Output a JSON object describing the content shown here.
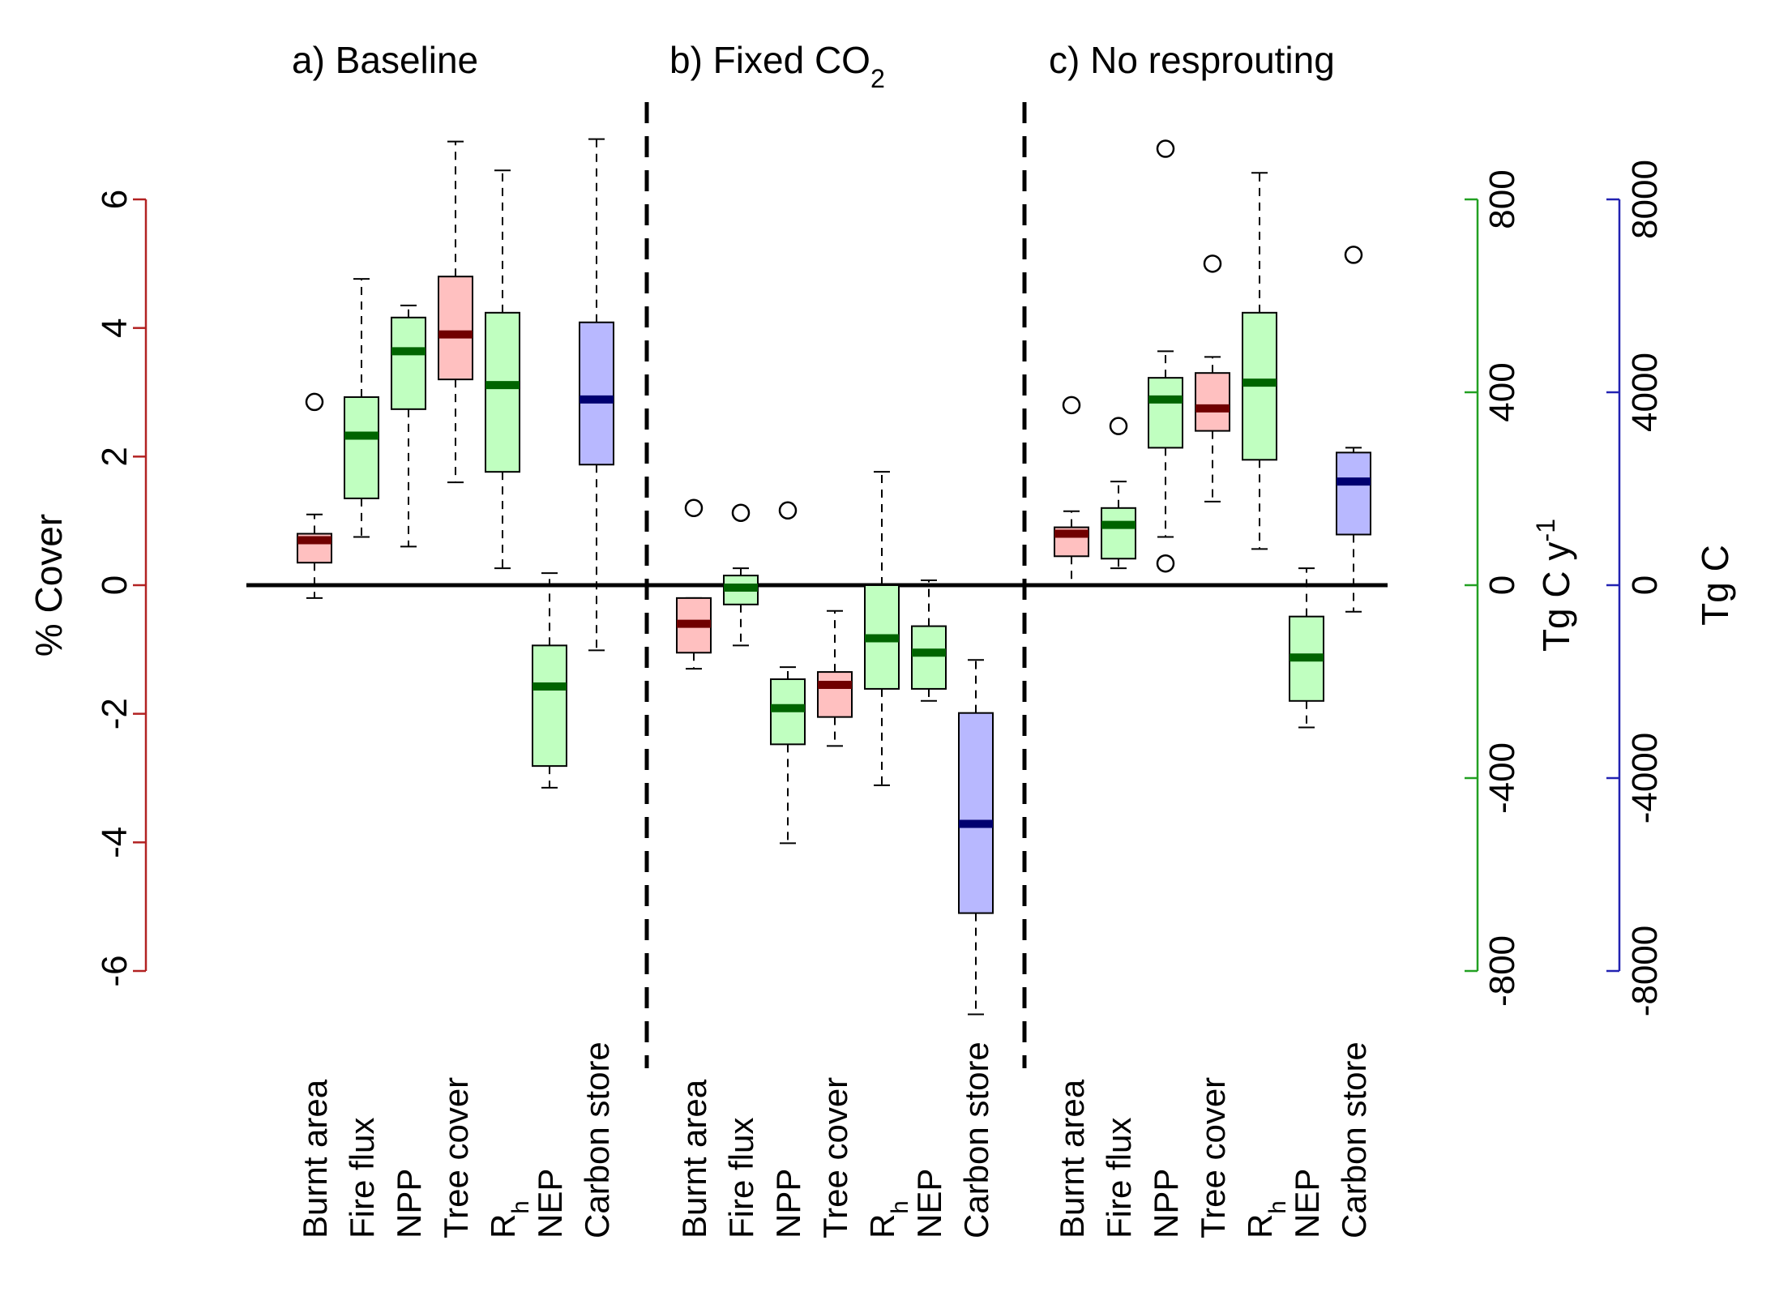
{
  "chart_data": {
    "type": "boxplot",
    "panels": [
      {
        "title_parts": [
          {
            "text": "a) Baseline"
          }
        ],
        "boxes": [
          {
            "label": "Burnt area",
            "group": "cover",
            "low": -0.2,
            "q1": 0.35,
            "median": 0.7,
            "q3": 0.8,
            "high": 1.1,
            "outliers": [
              2.85
            ]
          },
          {
            "label": "Fire flux",
            "group": "flux",
            "low": 100,
            "q1": 180,
            "median": 310,
            "q3": 390,
            "high": 635,
            "outliers": []
          },
          {
            "label": "NPP",
            "group": "flux",
            "low": 80,
            "q1": 365,
            "median": 485,
            "q3": 555,
            "high": 580,
            "outliers": []
          },
          {
            "label": "Tree cover",
            "group": "cover",
            "low": 1.6,
            "q1": 3.2,
            "median": 3.9,
            "q3": 4.8,
            "high": 6.9,
            "outliers": []
          },
          {
            "label": "R",
            "sub": "h",
            "group": "flux",
            "low": 35,
            "q1": 235,
            "median": 415,
            "q3": 565,
            "high": 860,
            "outliers": []
          },
          {
            "label": "NEP",
            "group": "flux",
            "low": -420,
            "q1": -375,
            "median": -210,
            "q3": -125,
            "high": 25,
            "outliers": []
          },
          {
            "label": "Carbon store",
            "group": "store",
            "low": -1350,
            "q1": 2500,
            "median": 3850,
            "q3": 5450,
            "high": 9250,
            "outliers": []
          }
        ]
      },
      {
        "title_parts": [
          {
            "text": "b) Fixed CO"
          },
          {
            "text": "2",
            "sub": true
          }
        ],
        "boxes": [
          {
            "label": "Burnt area",
            "group": "cover",
            "low": -1.3,
            "q1": -1.05,
            "median": -0.6,
            "q3": -0.2,
            "high": -0.2,
            "outliers": [
              1.2
            ]
          },
          {
            "label": "Fire flux",
            "group": "flux",
            "low": -125,
            "q1": -40,
            "median": -5,
            "q3": 20,
            "high": 35,
            "outliers": [
              150
            ]
          },
          {
            "label": "NPP",
            "group": "flux",
            "low": -535,
            "q1": -330,
            "median": -255,
            "q3": -195,
            "high": -170,
            "outliers": [
              155
            ]
          },
          {
            "label": "Tree cover",
            "group": "cover",
            "low": -2.5,
            "q1": -2.05,
            "median": -1.55,
            "q3": -1.35,
            "high": -0.4,
            "outliers": []
          },
          {
            "label": "R",
            "sub": "h",
            "group": "flux",
            "low": -415,
            "q1": -215,
            "median": -110,
            "q3": 0,
            "high": 235,
            "outliers": []
          },
          {
            "label": "NEP",
            "group": "flux",
            "low": -240,
            "q1": -215,
            "median": -140,
            "q3": -85,
            "high": 10,
            "outliers": []
          },
          {
            "label": "Carbon store",
            "group": "store",
            "low": -8900,
            "q1": -6800,
            "median": -4950,
            "q3": -2650,
            "high": -1550,
            "outliers": []
          }
        ]
      },
      {
        "title_parts": [
          {
            "text": "c) No resprouting"
          }
        ],
        "boxes": [
          {
            "label": "Burnt area",
            "group": "cover",
            "low": 0.0,
            "q1": 0.45,
            "median": 0.8,
            "q3": 0.9,
            "high": 1.15,
            "outliers": [
              2.8
            ]
          },
          {
            "label": "Fire flux",
            "group": "flux",
            "low": 35,
            "q1": 55,
            "median": 125,
            "q3": 160,
            "high": 215,
            "outliers": [
              330
            ]
          },
          {
            "label": "NPP",
            "group": "flux",
            "low": 100,
            "q1": 285,
            "median": 385,
            "q3": 430,
            "high": 485,
            "outliers": [
              45,
              905
            ]
          },
          {
            "label": "Tree cover",
            "group": "cover",
            "low": 1.3,
            "q1": 2.4,
            "median": 2.75,
            "q3": 3.3,
            "high": 3.55,
            "outliers": [
              5.0
            ]
          },
          {
            "label": "R",
            "sub": "h",
            "group": "flux",
            "low": 75,
            "q1": 260,
            "median": 420,
            "q3": 565,
            "high": 855,
            "outliers": []
          },
          {
            "label": "NEP",
            "group": "flux",
            "low": -295,
            "q1": -240,
            "median": -150,
            "q3": -65,
            "high": 35,
            "outliers": []
          },
          {
            "label": "Carbon store",
            "group": "store",
            "low": -550,
            "q1": 1050,
            "median": 2150,
            "q3": 2750,
            "high": 2850,
            "outliers": [
              6850
            ]
          }
        ]
      }
    ],
    "axes": {
      "cover": {
        "title": "% Cover",
        "ylim": [
          -6,
          6
        ],
        "ticks": [
          -6,
          -4,
          -2,
          0,
          2,
          4,
          6
        ],
        "tick_labels": [
          "-6",
          "-4",
          "-2",
          "0",
          "2",
          "4",
          "6"
        ],
        "color": "#b22222"
      },
      "flux": {
        "title_parts": [
          {
            "text": "Tg C y"
          },
          {
            "text": "-1",
            "sup": true
          }
        ],
        "ylim": [
          -800,
          800
        ],
        "ticks": [
          -800,
          -400,
          0,
          400,
          800
        ],
        "tick_labels": [
          "-800",
          "-400",
          "0",
          "400",
          "800"
        ],
        "color": "#22a022"
      },
      "store": {
        "title": "Tg C",
        "ylim": [
          -8000,
          8000
        ],
        "ticks": [
          -8000,
          -4000,
          0,
          4000,
          8000
        ],
        "tick_labels": [
          "-8000",
          "-4000",
          "0",
          "4000",
          "8000"
        ],
        "color": "#2222b2"
      }
    },
    "styles": {
      "cover": {
        "fill": "#ffc0c0",
        "median": "#700000"
      },
      "flux": {
        "fill": "#c0ffc0",
        "median": "#006400"
      },
      "store": {
        "fill": "#b8b8ff",
        "median": "#000070"
      }
    },
    "zero_line": true,
    "grid": false,
    "legend": "none"
  }
}
